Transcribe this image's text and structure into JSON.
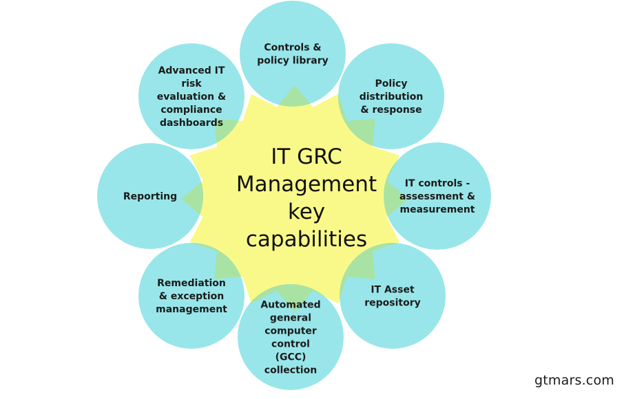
{
  "center": {
    "title_lines": [
      "IT GRC",
      "Management",
      "key",
      "capabilities"
    ]
  },
  "capabilities": [
    {
      "id": "controls-policy-library",
      "lines": [
        "Controls &",
        "policy library"
      ]
    },
    {
      "id": "policy-distribution-response",
      "lines": [
        "Policy",
        "distribution",
        "& response"
      ]
    },
    {
      "id": "it-controls-assessment",
      "lines": [
        "IT controls -",
        "assessment &",
        "measurement"
      ]
    },
    {
      "id": "it-asset-repository",
      "lines": [
        "IT Asset",
        "repository"
      ]
    },
    {
      "id": "automated-gcc-collection",
      "lines": [
        "Automated",
        "general",
        "computer",
        "control",
        "(GCC)",
        "collection"
      ]
    },
    {
      "id": "remediation-exception-management",
      "lines": [
        "Remediation",
        "& exception",
        "management"
      ]
    },
    {
      "id": "reporting",
      "lines": [
        "Reporting"
      ]
    },
    {
      "id": "advanced-risk-evaluation",
      "lines": [
        "Advanced IT",
        "risk",
        "evaluation &",
        "compliance",
        "dashboards"
      ]
    }
  ],
  "colors": {
    "circle_fill": "#98e6ea",
    "overlap_fill": "#a9e3a3",
    "center_fill": "#f9f98a"
  },
  "watermark": "gtmars.com"
}
